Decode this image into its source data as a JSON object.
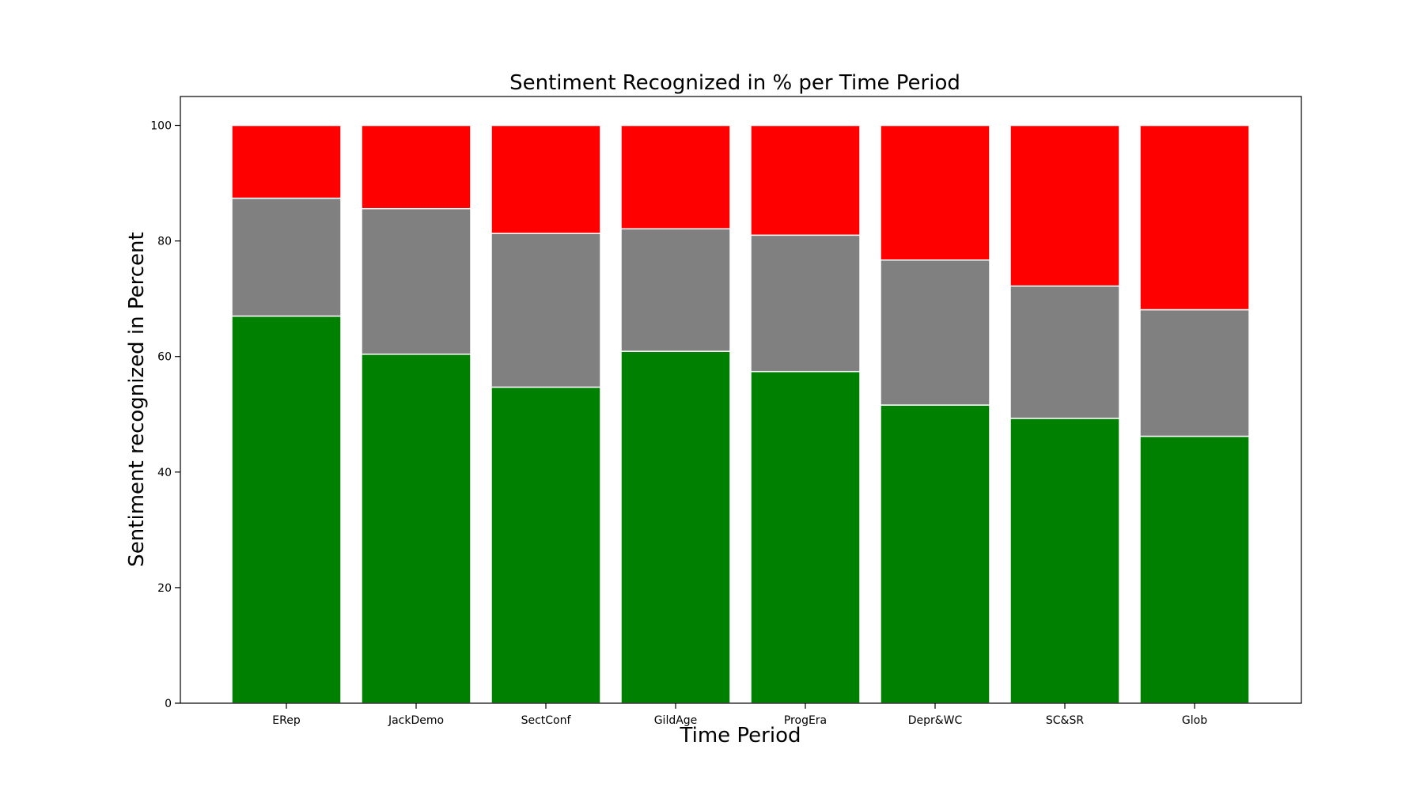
{
  "chart_data": {
    "type": "bar",
    "stacked": true,
    "title": "Sentiment Recognized in % per Time Period",
    "xlabel": "Time Period",
    "ylabel": "Sentiment recognized in Percent",
    "ylim": [
      0,
      105
    ],
    "yticks": [
      0,
      20,
      40,
      60,
      80,
      100
    ],
    "grid": false,
    "categories": [
      "ERep",
      "JackDemo",
      "SectConf",
      "GildAge",
      "ProgEra",
      "Depr&WC",
      "SC&SR",
      "Glob"
    ],
    "series": [
      {
        "color": "#008000",
        "values": [
          67.0,
          60.4,
          54.7,
          60.9,
          57.4,
          51.6,
          49.3,
          46.2
        ]
      },
      {
        "color": "#808080",
        "values": [
          20.4,
          25.2,
          26.6,
          21.2,
          23.6,
          25.1,
          22.9,
          21.9
        ]
      },
      {
        "color": "#ff0000",
        "values": [
          12.6,
          14.4,
          18.7,
          17.9,
          19.0,
          23.3,
          27.8,
          31.9
        ]
      }
    ]
  }
}
